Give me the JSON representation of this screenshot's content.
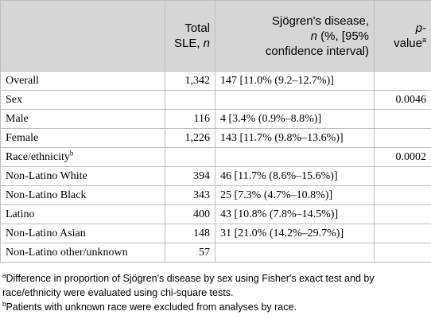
{
  "header": {
    "col1": "",
    "col2_line1": "Total",
    "col2_line2": "SLE, ",
    "col2_n": "n",
    "col3_line1": "Sjögren's disease,",
    "col3_line2_n": "n",
    "col3_line2": " (%, [95%",
    "col3_line3": "confidence interval)",
    "col4_line1": "p-",
    "col4_line2": "value",
    "col4_sup": "a"
  },
  "rows": [
    {
      "label": "Overall",
      "total": "1,342",
      "sjogren": "147 [11.0% (9.2–12.7%)]",
      "p": ""
    },
    {
      "label": "Sex",
      "total": "",
      "sjogren": "",
      "p": "0.0046"
    },
    {
      "label": "Male",
      "total": "116",
      "sjogren": "4 [3.4% (0.9%–8.8%)]",
      "p": ""
    },
    {
      "label": "Female",
      "total": "1,226",
      "sjogren": "143 [11.7% (9.8%–13.6%)]",
      "p": ""
    },
    {
      "label": "Race/ethnicity",
      "label_sup": "b",
      "total": "",
      "sjogren": "",
      "p": "0.0002"
    },
    {
      "label": "Non-Latino White",
      "total": "394",
      "sjogren": "46 [11.7% (8.6%–15.6%)]",
      "p": ""
    },
    {
      "label": "Non-Latino Black",
      "total": "343",
      "sjogren": "25 [7.3% (4.7%–10.8%)]",
      "p": ""
    },
    {
      "label": "Latino",
      "total": "400",
      "sjogren": "43 [10.8% (7.8%–14.5%)]",
      "p": ""
    },
    {
      "label": "Non-Latino Asian",
      "total": "148",
      "sjogren": "31 [21.0% (14.2%–29.7%)]",
      "p": ""
    },
    {
      "label": "Non-Latino other/unknown",
      "total": "57",
      "sjogren": "",
      "p": ""
    }
  ],
  "footnotes": {
    "a_mark": "a",
    "a_text": "Difference in proportion of Sjögren's disease by sex using Fisher's exact test and by race/ethnicity were evaluated using chi-square tests.",
    "b_mark": "b",
    "b_text": "Patients with unknown race were excluded from analyses by race."
  }
}
